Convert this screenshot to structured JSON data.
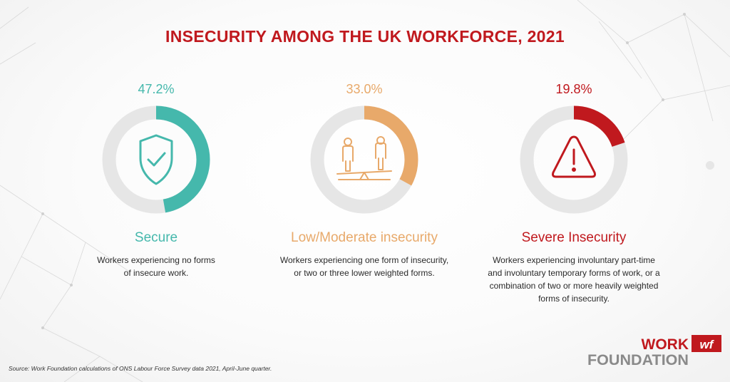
{
  "title": "INSECURITY AMONG THE UK WORKFORCE, 2021",
  "chart_data": {
    "type": "pie",
    "title": "INSECURITY AMONG THE UK WORKFORCE, 2021",
    "series": [
      {
        "label": "Secure",
        "value": 47.2,
        "value_label": "47.2%",
        "color": "#45b8ac",
        "description_lines": [
          "Workers experiencing no forms",
          "of insecure work."
        ],
        "icon": "shield-check-icon"
      },
      {
        "label": "Low/Moderate insecurity",
        "value": 33.0,
        "value_label": "33.0%",
        "color": "#e8a96a",
        "description_lines": [
          "Workers experiencing one form of insecurity,",
          "or two or three lower weighted forms."
        ],
        "icon": "seesaw-people-icon"
      },
      {
        "label": "Severe Insecurity",
        "value": 19.8,
        "value_label": "19.8%",
        "color": "#c0191e",
        "description_lines": [
          "Workers experiencing involuntary part-time",
          "and involuntary temporary forms of work, or a",
          "combination of two or more heavily weighted",
          "forms of insecurity."
        ],
        "icon": "warning-triangle-icon"
      }
    ],
    "track_color": "#e6e6e6",
    "unit": "%"
  },
  "colors": {
    "title": "#c0191e",
    "label_severe": "#c0191e"
  },
  "source": "Source: Work Foundation calculations of ONS Labour Force Survey data 2021, April-June quarter.",
  "logo": {
    "word1": "WORK",
    "word2": "FOUNDATION",
    "mark": "wf"
  }
}
